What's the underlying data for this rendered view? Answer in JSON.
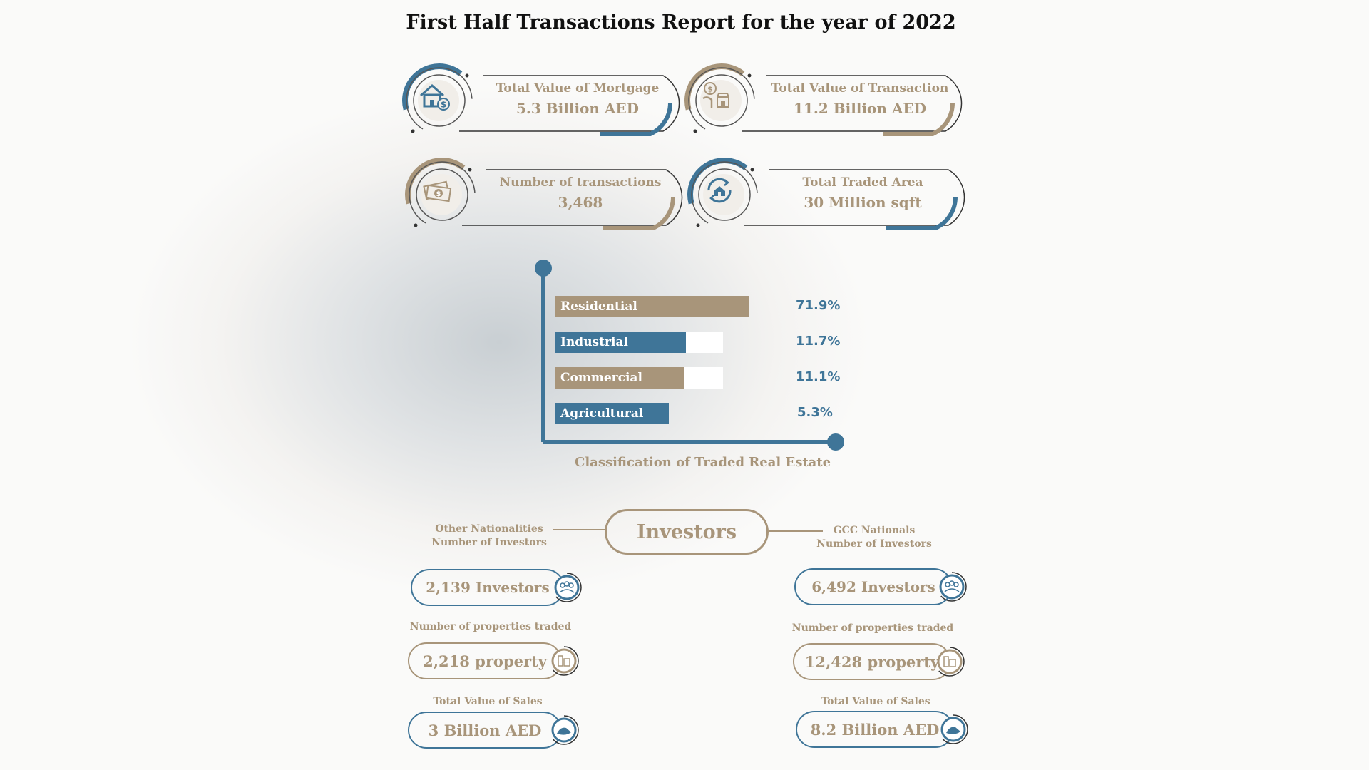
{
  "title": "First Half  Transactions Report for the year of 2022",
  "colors": {
    "tan": "#a8957a",
    "blue": "#3f7598",
    "dark": "#333333"
  },
  "cards": [
    {
      "label": "Total Value of Mortgage",
      "value": "5.3 Billion AED",
      "icon": "house-dollar-icon",
      "accent": "#3f7598"
    },
    {
      "label": "Total Value of Transaction",
      "value": "11.2 Billion AED",
      "icon": "hand-shop-dollar-icon",
      "accent": "#a8957a"
    },
    {
      "label": "Number of  transactions",
      "value": "3,468",
      "icon": "money-stack-icon",
      "accent": "#a8957a"
    },
    {
      "label": "Total Traded Area",
      "value": "30 Million sqft",
      "icon": "house-cycle-icon",
      "accent": "#3f7598"
    }
  ],
  "chart_data": {
    "type": "bar",
    "title": "Classification of Traded Real Estate",
    "categories": [
      "Residential",
      "Industrial",
      "Commercial",
      "Agricultural"
    ],
    "values": [
      71.9,
      11.7,
      11.1,
      5.3
    ],
    "value_labels": [
      "71.9%",
      "11.7%",
      "11.1%",
      "5.3%"
    ],
    "bar_colors": [
      "#a8957a",
      "#3f7598",
      "#a8957a",
      "#3f7598"
    ]
  },
  "investors": {
    "title": "Investors",
    "other": {
      "heading_line1": "Other Nationalities",
      "heading_line2": "Number of Investors",
      "investors_value": "2,139 Investors",
      "properties_label": "Number of properties traded",
      "properties_value": "2,218 property",
      "sales_label": "Total Value of Sales",
      "sales_value": "3 Billion AED"
    },
    "gcc": {
      "heading_line1": "GCC Nationals",
      "heading_line2": "Number of Investors",
      "investors_value": "6,492 Investors",
      "properties_label": "Number of properties traded",
      "properties_value": "12,428 property",
      "sales_label": "Total Value of Sales",
      "sales_value": "8.2 Billion AED"
    }
  }
}
